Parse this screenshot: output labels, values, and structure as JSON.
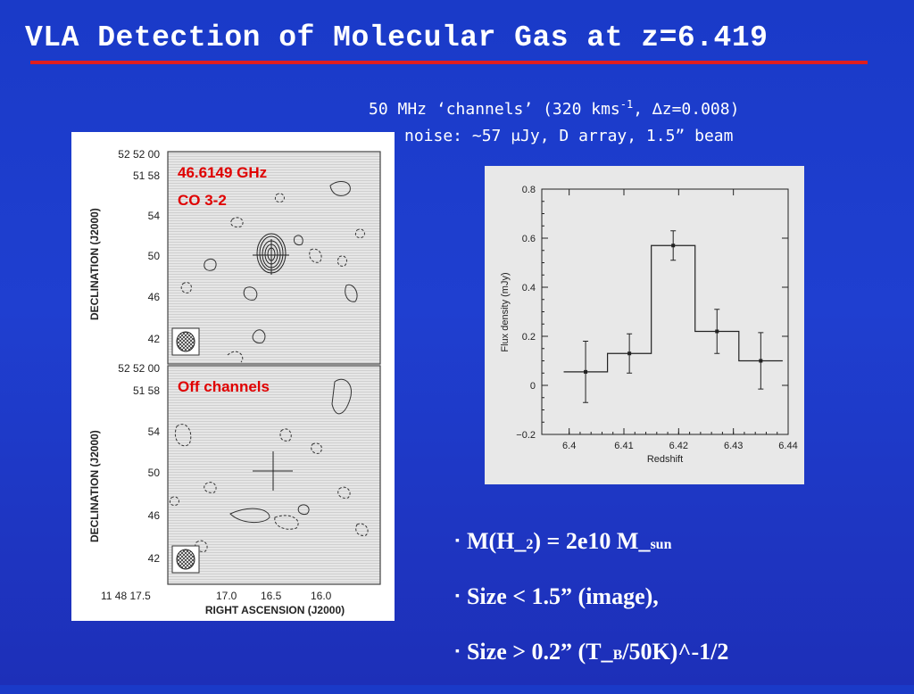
{
  "slide": {
    "title": "VLA Detection of Molecular Gas at z=6.419",
    "info_line1_a": "50 MHz ‘channels’  (320 kms",
    "info_line1_sup": "-1",
    "info_line1_b": ", ∆z=0.008)",
    "info_line2": "noise: ~57 μJy, D array, 1.5” beam"
  },
  "maps": {
    "top": {
      "label_freq": "46.6149 GHz",
      "label_line": "CO 3-2",
      "dec_ticks": [
        "52 52 00",
        "51 58",
        "54",
        "50",
        "46",
        "42"
      ],
      "ylabel": "DECLINATION (J2000)"
    },
    "bottom": {
      "label": "Off channels",
      "dec_ticks": [
        "52 52 00",
        "51 58",
        "54",
        "50",
        "46",
        "42"
      ],
      "ylabel": "DECLINATION (J2000)",
      "ra_ticks": [
        "11 48 17.5",
        "17.0",
        "16.5",
        "16.0"
      ],
      "xlabel": "RIGHT ASCENSION (J2000)"
    }
  },
  "chart_data": {
    "type": "line",
    "xlabel": "Redshift",
    "ylabel": "Flux density (mJy)",
    "xlim": [
      6.395,
      6.44
    ],
    "ylim": [
      -0.2,
      0.8
    ],
    "x_ticks": [
      "6.4",
      "6.41",
      "6.42",
      "6.43",
      "6.44"
    ],
    "y_ticks": [
      "−0.2",
      "0",
      "0.2",
      "0.4",
      "0.6",
      "0.8"
    ],
    "series": [
      {
        "x": [
          6.403,
          6.411,
          6.419,
          6.427,
          6.435
        ],
        "y": [
          0.055,
          0.13,
          0.57,
          0.22,
          0.1
        ],
        "yerr": [
          0.125,
          0.08,
          0.06,
          0.09,
          0.115
        ],
        "bin_width": 0.008
      }
    ]
  },
  "bullets": {
    "b1_main": "M(H_",
    "b1_sub": "2",
    "b1_rest": ") = 2e10 M_",
    "b1_sub2": "sun",
    "b2": "Size < 1.5” (image),",
    "b3_main": "Size > 0.2” (T_",
    "b3_sub": "B",
    "b3_rest": "/50K)^-1/2",
    "marker": "▪"
  }
}
